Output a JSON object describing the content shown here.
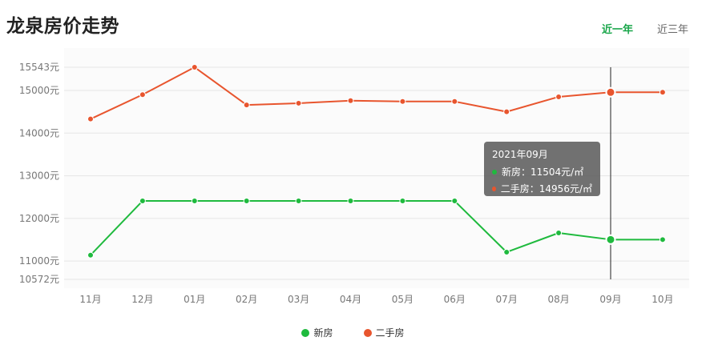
{
  "page": {
    "title": "龙泉房价走势",
    "tabs": [
      {
        "label": "近一年",
        "active": true
      },
      {
        "label": "近三年",
        "active": false
      }
    ]
  },
  "colors": {
    "new": "#1fba3e",
    "second": "#e8552e",
    "accent": "#19a64a"
  },
  "tooltip": {
    "title": "2021年09月",
    "rows": [
      {
        "label": "新房：11504元/㎡",
        "series": "new"
      },
      {
        "label": "二手房：14956元/㎡",
        "series": "second"
      }
    ]
  },
  "chart_data": {
    "type": "line",
    "categories": [
      "11月",
      "12月",
      "01月",
      "02月",
      "03月",
      "04月",
      "05月",
      "06月",
      "07月",
      "08月",
      "09月",
      "10月"
    ],
    "y_ticks": [
      {
        "value": 15543,
        "label": "15543元"
      },
      {
        "value": 15000,
        "label": "15000元"
      },
      {
        "value": 14000,
        "label": "14000元"
      },
      {
        "value": 13000,
        "label": "13000元"
      },
      {
        "value": 12000,
        "label": "12000元"
      },
      {
        "value": 11000,
        "label": "11000元"
      },
      {
        "value": 10572,
        "label": "10572元"
      }
    ],
    "ylim": [
      10572,
      15543
    ],
    "grid": true,
    "legend_position": "bottom",
    "highlight_index": 10,
    "series": [
      {
        "name": "新房",
        "key": "new",
        "values": [
          11140,
          12410,
          12410,
          12410,
          12410,
          12410,
          12410,
          12410,
          11210,
          11660,
          11504,
          11504
        ]
      },
      {
        "name": "二手房",
        "key": "second",
        "values": [
          14330,
          14900,
          15543,
          14660,
          14700,
          14760,
          14740,
          14740,
          14500,
          14850,
          14956,
          14956
        ]
      }
    ]
  }
}
